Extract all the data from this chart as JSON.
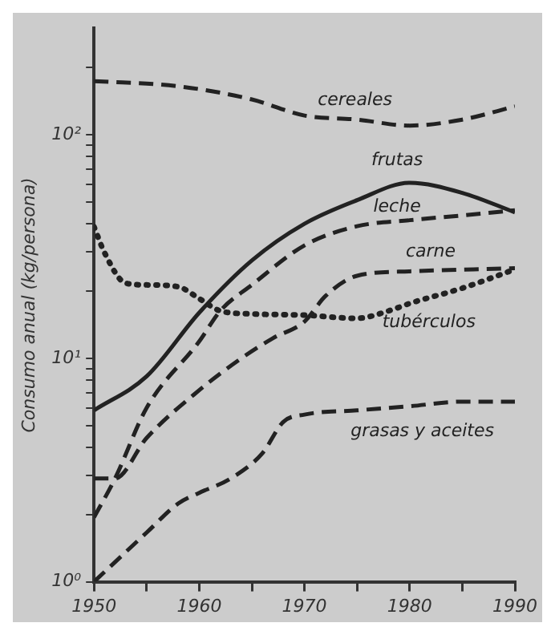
{
  "chart_data": {
    "type": "line",
    "ylabel": "Consumo anual (kg/persona)",
    "log": "y",
    "grid": false,
    "legend": false,
    "marker": "none",
    "xlim": [
      1950,
      1990
    ],
    "xticks": [
      1950,
      {
        "value": 1955,
        "label": null
      },
      1960,
      {
        "value": 1965,
        "label": null
      },
      1970,
      {
        "value": 1975,
        "label": null
      },
      1980,
      {
        "value": 1985,
        "label": null
      },
      1990
    ],
    "ylim": [
      1,
      300
    ],
    "yticks": [
      {
        "value": 1,
        "label": "10⁰"
      },
      {
        "value": 2,
        "label": null
      },
      {
        "value": 3,
        "label": null
      },
      {
        "value": 4,
        "label": null
      },
      {
        "value": 5,
        "label": null
      },
      {
        "value": 6,
        "label": null
      },
      {
        "value": 7,
        "label": null
      },
      {
        "value": 8,
        "label": null
      },
      {
        "value": 9,
        "label": null
      },
      {
        "value": 10,
        "label": "10¹"
      },
      {
        "value": 20,
        "label": null
      },
      {
        "value": 30,
        "label": null
      },
      {
        "value": 40,
        "label": null
      },
      {
        "value": 50,
        "label": null
      },
      {
        "value": 60,
        "label": null
      },
      {
        "value": 70,
        "label": null
      },
      {
        "value": 80,
        "label": null
      },
      {
        "value": 90,
        "label": null
      },
      {
        "value": 100,
        "label": "10²"
      },
      {
        "value": 200,
        "label": null
      }
    ],
    "series": [
      {
        "name": "cereales",
        "color": "#222222",
        "line_style": "dashed",
        "x": [
          1950,
          1958,
          1965,
          1970,
          1975,
          1980,
          1985,
          1990
        ],
        "values": [
          174,
          165,
          144,
          122,
          117,
          110,
          117,
          134
        ]
      },
      {
        "name": "frutas",
        "color": "#222222",
        "line_style": "solid",
        "x": [
          1950,
          1955,
          1960,
          1965,
          1970,
          1975,
          1980,
          1985,
          1990
        ],
        "values": [
          5.85,
          8.3,
          16,
          27.4,
          40,
          51,
          61,
          55,
          45
        ]
      },
      {
        "name": "leche",
        "color": "#222222",
        "line_style": "dashed",
        "x": [
          1950,
          1952,
          1955,
          1960,
          1962,
          1965,
          1970,
          1975,
          1980,
          1985,
          1990
        ],
        "values": [
          1.94,
          2.9,
          6,
          11.9,
          16.3,
          21.3,
          32,
          39,
          41.5,
          43.6,
          46
        ]
      },
      {
        "name": "carne",
        "color": "#222222",
        "line_style": "dashed",
        "x": [
          1950,
          1952,
          1955,
          1960,
          1964,
          1967,
          1970,
          1972,
          1975,
          1980,
          1990
        ],
        "values": [
          2.9,
          2.9,
          4.4,
          7.2,
          10,
          12.3,
          14.6,
          19,
          23.4,
          24.5,
          25.3
        ]
      },
      {
        "name": "tubérculos",
        "color": "#222222",
        "line_style": "dotted",
        "x": [
          1950,
          1951,
          1953,
          1955,
          1958,
          1960,
          1962,
          1965,
          1970,
          1975,
          1978,
          1980,
          1985,
          1990
        ],
        "values": [
          38.8,
          29.7,
          21.7,
          21.3,
          20.9,
          18.5,
          16.3,
          15.8,
          15.6,
          15.1,
          16.3,
          17.6,
          20.6,
          25
        ]
      },
      {
        "name": "grasas y aceites",
        "color": "#222222",
        "line_style": "dashed",
        "x": [
          1950,
          1955,
          1958,
          1960,
          1963,
          1966,
          1968,
          1970,
          1975,
          1980,
          1985,
          1990
        ],
        "values": [
          1,
          1.66,
          2.24,
          2.5,
          2.9,
          3.76,
          5.2,
          5.6,
          5.85,
          6.1,
          6.4,
          6.4
        ]
      }
    ]
  }
}
